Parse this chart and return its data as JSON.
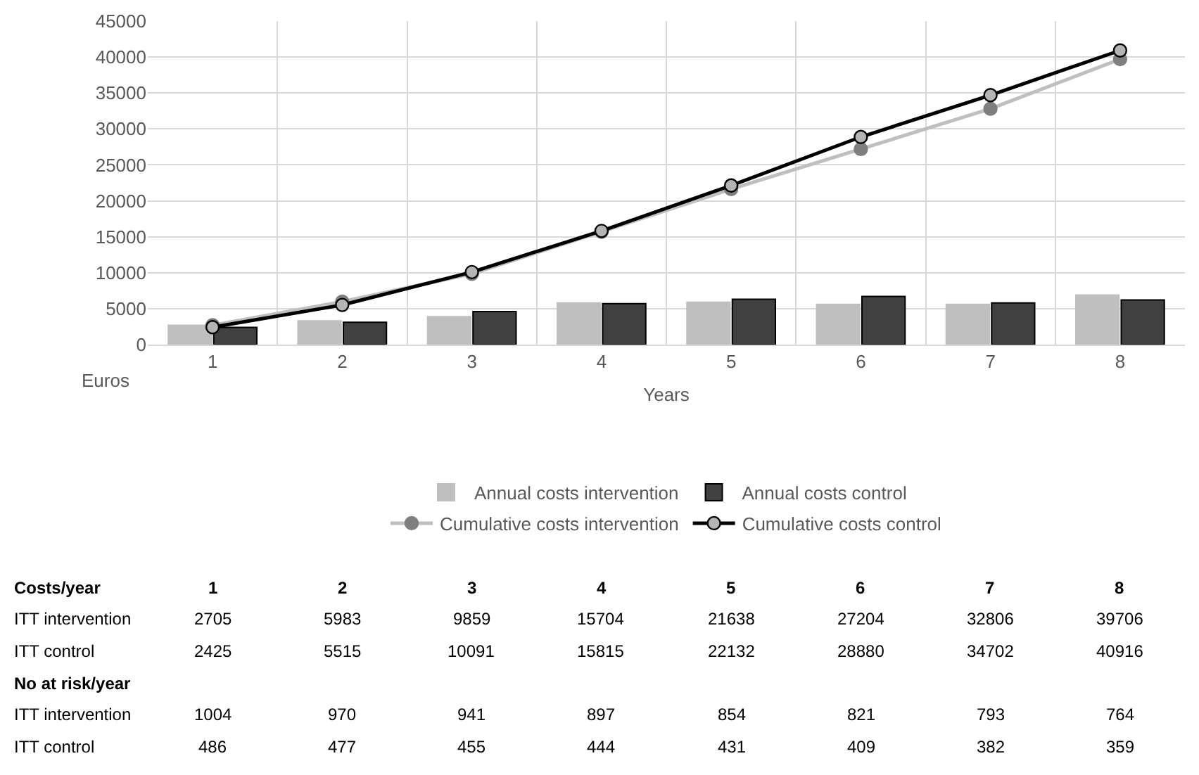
{
  "chart_data": {
    "type": "bar",
    "xlabel": "Years",
    "ylabel": "Euros",
    "categories": [
      "1",
      "2",
      "3",
      "4",
      "5",
      "6",
      "7",
      "8"
    ],
    "series": [
      {
        "name": "Annual costs intervention",
        "color": "#bfbfbf",
        "values": [
          2700,
          3300,
          3900,
          5800,
          5900,
          5600,
          5600,
          6900
        ]
      },
      {
        "name": "Annual costs control",
        "color": "#404040",
        "values": [
          2400,
          3100,
          4600,
          5700,
          6300,
          6700,
          5800,
          6200
        ]
      },
      {
        "name": "Cumulative costs intervention",
        "type": "line",
        "color": "#bfbfbf",
        "values": [
          2705,
          5983,
          9859,
          15704,
          21638,
          27204,
          32806,
          39706
        ],
        "value_labels": [
          "2705",
          "5983",
          "9859",
          "15704",
          "21638",
          "27204",
          "32806",
          "39706"
        ]
      },
      {
        "name": "Cumulative costs control",
        "type": "line",
        "color": "#000000",
        "values": [
          2425,
          5515,
          10091,
          15815,
          22132,
          28880,
          34702,
          40916
        ],
        "value_labels": [
          "2425",
          "5515",
          "10091",
          "15815",
          "22132",
          "28880",
          "34702",
          "40916"
        ]
      }
    ],
    "ylim": [
      0,
      45000
    ],
    "yticks": [
      0,
      5000,
      10000,
      15000,
      20000,
      25000,
      30000,
      35000,
      40000,
      45000
    ],
    "grid": true,
    "legend": "bottom",
    "marker": "circle",
    "annotations": [
      "Costs/year",
      "ITT intervention",
      "ITT control",
      "No at risk/year",
      "ITT intervention",
      "ITT control",
      "1004",
      "970",
      "941",
      "897",
      "854",
      "821",
      "793",
      "764",
      "486",
      "477",
      "455",
      "444",
      "431",
      "409",
      "382",
      "359"
    ]
  }
}
